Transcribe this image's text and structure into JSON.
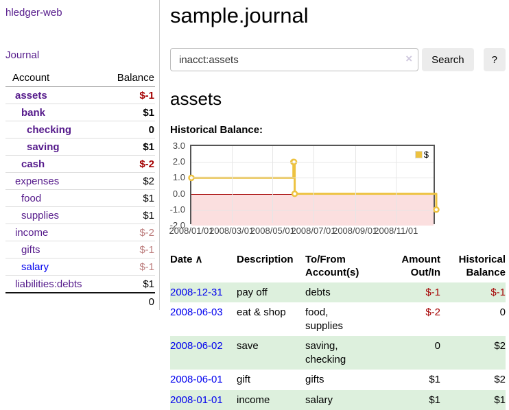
{
  "sidebar": {
    "app_title": "hledger-web",
    "journal_link": "Journal",
    "accounts_table": {
      "headers": [
        "Account",
        "Balance"
      ],
      "rows": [
        {
          "name": "assets",
          "balance": "$-1"
        },
        {
          "name": "bank",
          "balance": "$1"
        },
        {
          "name": "checking",
          "balance": "0"
        },
        {
          "name": "saving",
          "balance": "$1"
        },
        {
          "name": "cash",
          "balance": "$-2"
        },
        {
          "name": "expenses",
          "balance": "$2"
        },
        {
          "name": "food",
          "balance": "$1"
        },
        {
          "name": "supplies",
          "balance": "$1"
        },
        {
          "name": "income",
          "balance": "$-2"
        },
        {
          "name": "gifts",
          "balance": "$-1"
        },
        {
          "name": "salary",
          "balance": "$-1"
        },
        {
          "name": "liabilities:debts",
          "balance": "$1"
        }
      ],
      "total": "0"
    }
  },
  "main": {
    "title": "sample.journal",
    "search": {
      "value": "inacct:assets",
      "clear_icon": "×",
      "button_label": "Search",
      "help_label": "?"
    },
    "account_heading": "assets",
    "chart_label": "Historical Balance:"
  },
  "chart_data": {
    "type": "line",
    "step": true,
    "title": "Historical Balance",
    "series": [
      {
        "name": "$",
        "color": "#edc240",
        "points": [
          [
            "2008-01-01",
            1.0
          ],
          [
            "2008-06-01",
            2.0
          ],
          [
            "2008-06-02",
            2.0
          ],
          [
            "2008-06-03",
            0.0
          ],
          [
            "2008-12-31",
            -1.0
          ]
        ]
      }
    ],
    "xlim": [
      "2008-01-01",
      "2008-12-31"
    ],
    "ylim": [
      -2.0,
      3.0
    ],
    "yticks": [
      {
        "v": 3.0,
        "label": "3.0"
      },
      {
        "v": 2.0,
        "label": "2.0"
      },
      {
        "v": 1.0,
        "label": "1.0"
      },
      {
        "v": 0.0,
        "label": "0.0"
      },
      {
        "v": -1.0,
        "label": "-1.0"
      },
      {
        "v": -2.0,
        "label": "-2.0"
      }
    ],
    "xticks": [
      {
        "v": "2008-01-01",
        "label": "2008/01/01"
      },
      {
        "v": "2008-03-01",
        "label": "2008/03/01"
      },
      {
        "v": "2008-05-01",
        "label": "2008/05/01"
      },
      {
        "v": "2008-07-01",
        "label": "2008/07/01"
      },
      {
        "v": "2008-09-01",
        "label": "2008/09/01"
      },
      {
        "v": "2008-11-01",
        "label": "2008/11/01"
      }
    ],
    "grid": true,
    "legend_position": "top-right",
    "negative_region": {
      "from": 0,
      "color": "#fbdfdf",
      "line_color": "#a40000"
    }
  },
  "register_table": {
    "headers": {
      "date": "Date",
      "sort_icon": "∧",
      "description": "Description",
      "accounts": "To/From Account(s)",
      "amount": "Amount Out/In",
      "balance": "Historical Balance"
    },
    "rows": [
      {
        "date": "2008-12-31",
        "description": "pay off",
        "accounts": "debts",
        "amount": "$-1",
        "balance": "$-1"
      },
      {
        "date": "2008-06-03",
        "description": "eat & shop",
        "accounts": "food, supplies",
        "amount": "$-2",
        "balance": "0"
      },
      {
        "date": "2008-06-02",
        "description": "save",
        "accounts": "saving, checking",
        "amount": "0",
        "balance": "$2"
      },
      {
        "date": "2008-06-01",
        "description": "gift",
        "accounts": "gifts",
        "amount": "$1",
        "balance": "$2"
      },
      {
        "date": "2008-01-01",
        "description": "income",
        "accounts": "salary",
        "amount": "$1",
        "balance": "$1"
      }
    ]
  },
  "colors": {
    "link_purple": "#551a8b",
    "link_blue": "#0000ee",
    "negative_strong": "#a40000",
    "negative_faded": "#bd7e7e",
    "row_green": "#ddf0dd",
    "chart_line_yellow": "#edc240",
    "chart_border": "#545454",
    "chart_grid": "#e6e6e6",
    "chart_negative_region": "#fbdfdf",
    "chart_zero_line": "#a40000"
  }
}
